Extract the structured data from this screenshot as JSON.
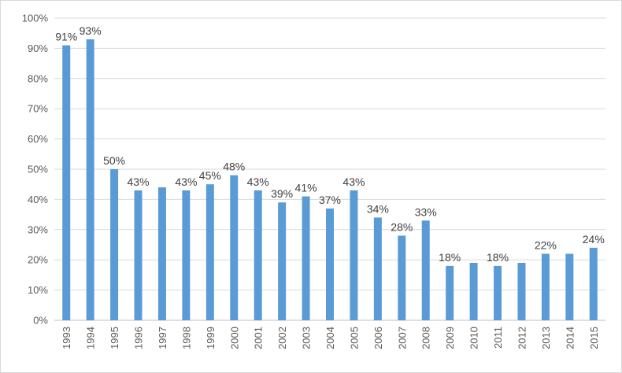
{
  "chart_data": {
    "type": "bar",
    "title": "",
    "xlabel": "",
    "ylabel": "",
    "ylim": [
      0,
      100
    ],
    "y_ticks": [
      "0%",
      "10%",
      "20%",
      "30%",
      "40%",
      "50%",
      "60%",
      "70%",
      "80%",
      "90%",
      "100%"
    ],
    "y_tick_values": [
      0,
      10,
      20,
      30,
      40,
      50,
      60,
      70,
      80,
      90,
      100
    ],
    "grid": true,
    "legend": "none",
    "bar_color": "#5b9bd5",
    "categories": [
      "1993",
      "1994",
      "1995",
      "1996",
      "1997",
      "1998",
      "1999",
      "2000",
      "2001",
      "2002",
      "2003",
      "2004",
      "2005",
      "2006",
      "2007",
      "2008",
      "2009",
      "2010",
      "2011",
      "2012",
      "2013",
      "2014",
      "2015"
    ],
    "values": [
      91,
      93,
      50,
      43,
      44,
      43,
      45,
      48,
      43,
      39,
      41,
      37,
      43,
      34,
      28,
      33,
      18,
      19,
      18,
      19,
      22,
      22,
      24
    ],
    "data_labels": [
      "91%",
      "93%",
      "50%",
      "43%",
      null,
      "43%",
      "45%",
      "48%",
      "43%",
      "39%",
      "41%",
      "37%",
      "43%",
      "34%",
      "28%",
      "33%",
      "18%",
      null,
      "18%",
      null,
      "22%",
      null,
      "24%"
    ]
  }
}
